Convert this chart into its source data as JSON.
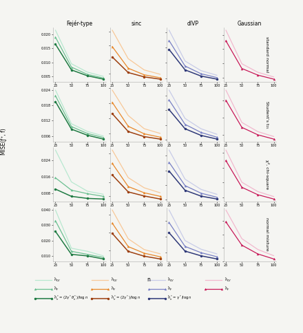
{
  "n_values": [
    25,
    50,
    75,
    100
  ],
  "col_titles": [
    "Fejér-type",
    "sinc",
    "dlVP",
    "Gaussian"
  ],
  "row_titles": [
    "standard normal",
    "Student’s t₁₅",
    "χ², chi-square",
    "normal mixture"
  ],
  "xlabel": "n",
  "ylabel": "MISE(ƒ⁺, f)",
  "data": {
    "fejer": {
      "standard_normal": {
        "hCV": [
          0.0215,
          0.0095,
          0.0065,
          0.005
        ],
        "hF": [
          0.019,
          0.0083,
          0.0057,
          0.0044
        ],
        "hstar": [
          0.0165,
          0.0073,
          0.0052,
          0.004
        ]
      },
      "student": {
        "hCV": [
          0.024,
          0.0108,
          0.0078,
          0.006
        ],
        "hF": [
          0.0218,
          0.0097,
          0.007,
          0.0054
        ],
        "hstar": [
          0.0195,
          0.0087,
          0.0063,
          0.0048
        ]
      },
      "chisq": {
        "hCV": [
          0.029,
          0.0135,
          0.009,
          0.0075
        ],
        "hF": [
          0.0155,
          0.0095,
          0.0078,
          0.0065
        ],
        "hstar": [
          0.01,
          0.0065,
          0.0055,
          0.0052
        ]
      },
      "mixture": {
        "hCV": [
          0.04,
          0.015,
          0.013,
          0.01
        ],
        "hF": [
          0.033,
          0.013,
          0.011,
          0.009
        ],
        "hstar": [
          0.026,
          0.011,
          0.01,
          0.008
        ]
      }
    },
    "sinc": {
      "standard_normal": {
        "hCV": [
          0.033,
          0.0165,
          0.01,
          0.0075
        ],
        "hF": [
          0.0235,
          0.011,
          0.0072,
          0.0055
        ],
        "hstar": [
          0.0175,
          0.0085,
          0.006,
          0.0047
        ]
      },
      "student": {
        "hCV": [
          0.031,
          0.0175,
          0.0105,
          0.008
        ],
        "hF": [
          0.0245,
          0.0118,
          0.0078,
          0.006
        ],
        "hstar": [
          0.0185,
          0.009,
          0.0063,
          0.005
        ]
      },
      "chisq": {
        "hCV": [
          0.034,
          0.0185,
          0.0128,
          0.01
        ],
        "hF": [
          0.0265,
          0.0135,
          0.01,
          0.008
        ],
        "hstar": [
          0.02,
          0.0105,
          0.0082,
          0.0065
        ]
      },
      "mixture": {
        "hCV": [
          0.049,
          0.025,
          0.016,
          0.0125
        ],
        "hF": [
          0.038,
          0.0185,
          0.013,
          0.01
        ],
        "hstar": [
          0.0295,
          0.0145,
          0.0105,
          0.0082
        ]
      }
    },
    "dlvp": {
      "standard_normal": {
        "hCV": [
          0.0165,
          0.0085,
          0.006,
          0.0048
        ],
        "hF": [
          0.0138,
          0.0072,
          0.0052,
          0.0042
        ],
        "hstar": [
          0.0115,
          0.0062,
          0.0046,
          0.0038
        ]
      },
      "student": {
        "hCV": [
          0.0175,
          0.0098,
          0.007,
          0.0055
        ],
        "hF": [
          0.0148,
          0.0082,
          0.006,
          0.0047
        ],
        "hstar": [
          0.0122,
          0.007,
          0.0052,
          0.0042
        ]
      },
      "chisq": {
        "hCV": [
          0.022,
          0.012,
          0.0085,
          0.0068
        ],
        "hF": [
          0.0178,
          0.0098,
          0.0072,
          0.0058
        ],
        "hstar": [
          0.0148,
          0.0082,
          0.0062,
          0.0052
        ]
      },
      "mixture": {
        "hCV": [
          0.037,
          0.0175,
          0.012,
          0.009
        ],
        "hF": [
          0.029,
          0.0138,
          0.0098,
          0.0072
        ],
        "hstar": [
          0.0225,
          0.0108,
          0.0078,
          0.0058
        ]
      }
    },
    "gaussian": {
      "standard_normal": {
        "hCV": [
          0.026,
          0.0118,
          0.0082,
          0.0062
        ],
        "hF": [
          0.0215,
          0.0098,
          0.007,
          0.0053
        ]
      },
      "student": {
        "hCV": [
          0.029,
          0.0138,
          0.0095,
          0.0072
        ],
        "hF": [
          0.0242,
          0.0115,
          0.008,
          0.006
        ]
      },
      "chisq": {
        "hCV": [
          0.0335,
          0.0162,
          0.0112,
          0.0085
        ],
        "hF": [
          0.0278,
          0.0135,
          0.0095,
          0.0072
        ]
      },
      "mixture": {
        "hCV": [
          0.048,
          0.0268,
          0.0188,
          0.0142
        ],
        "hF": [
          0.0392,
          0.022,
          0.0155,
          0.0118
        ]
      }
    }
  },
  "colors": {
    "fejer": {
      "hCV": "#b8e8d0",
      "hF": "#6abf90",
      "hstar": "#1e7a42"
    },
    "sinc": {
      "hCV": "#f8c898",
      "hF": "#e8882a",
      "hstar": "#9c3e0e"
    },
    "dlvp": {
      "hCV": "#c8cce8",
      "hF": "#7880c5",
      "hstar": "#2e3878"
    },
    "gaussian": {
      "hCV": "#f2b8ce",
      "hF": "#c81858"
    }
  },
  "bg_color": "#f5f5f2"
}
